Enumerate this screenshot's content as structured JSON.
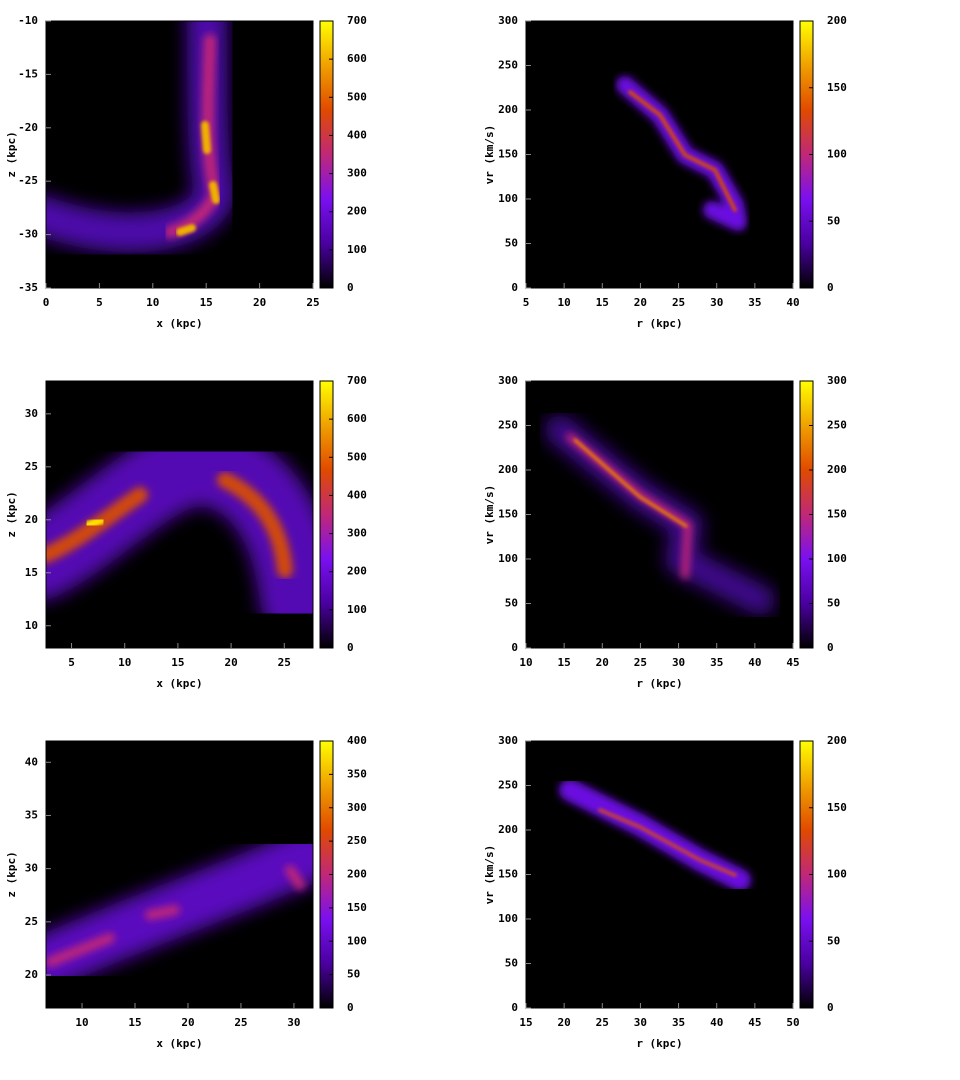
{
  "chart_data": [
    {
      "type": "heatmap",
      "xlabel": "x (kpc)",
      "ylabel": "z (kpc)",
      "xlim": [
        0,
        25
      ],
      "xticks": [
        0,
        5,
        10,
        15,
        20,
        25
      ],
      "ylim": [
        -35,
        -10
      ],
      "yticks": [
        -35,
        -30,
        -25,
        -20,
        -15,
        -10
      ],
      "cblim": [
        0,
        700
      ],
      "cbticks": [
        0,
        100,
        200,
        300,
        400,
        500,
        600,
        700
      ],
      "colormap": [
        "#000000",
        "#4a00a0",
        "#7a10f0",
        "#c02878",
        "#e04a00",
        "#f0a000",
        "#ffff00"
      ]
    },
    {
      "type": "heatmap",
      "xlabel": "r (kpc)",
      "ylabel": "vr (km/s)",
      "xlim": [
        5,
        40
      ],
      "xticks": [
        5,
        10,
        15,
        20,
        25,
        30,
        35,
        40
      ],
      "ylim": [
        0,
        300
      ],
      "yticks": [
        0,
        50,
        100,
        150,
        200,
        250,
        300
      ],
      "cblim": [
        0,
        200
      ],
      "cbticks": [
        0,
        50,
        100,
        150,
        200
      ],
      "colormap": [
        "#000000",
        "#4a00a0",
        "#7a10f0",
        "#c02878",
        "#e04a00",
        "#f0a000",
        "#ffff00"
      ]
    },
    {
      "type": "heatmap",
      "xlabel": "x (kpc)",
      "ylabel": "z (kpc)",
      "xlim": [
        2.6,
        27.7
      ],
      "xticks": [
        5,
        10,
        15,
        20,
        25
      ],
      "ylim": [
        7.9,
        33.1
      ],
      "yticks": [
        10,
        15,
        20,
        25,
        30
      ],
      "cblim": [
        0,
        700
      ],
      "cbticks": [
        0,
        100,
        200,
        300,
        400,
        500,
        600,
        700
      ],
      "colormap": [
        "#000000",
        "#4a00a0",
        "#7a10f0",
        "#c02878",
        "#e04a00",
        "#f0a000",
        "#ffff00"
      ]
    },
    {
      "type": "heatmap",
      "xlabel": "r (kpc)",
      "ylabel": "vr (km/s)",
      "xlim": [
        10,
        45
      ],
      "xticks": [
        10,
        15,
        20,
        25,
        30,
        35,
        40,
        45
      ],
      "ylim": [
        0,
        300
      ],
      "yticks": [
        0,
        50,
        100,
        150,
        200,
        250,
        300
      ],
      "cblim": [
        0,
        300
      ],
      "cbticks": [
        0,
        50,
        100,
        150,
        200,
        250,
        300
      ],
      "colormap": [
        "#000000",
        "#4a00a0",
        "#7a10f0",
        "#c02878",
        "#e04a00",
        "#f0a000",
        "#ffff00"
      ]
    },
    {
      "type": "heatmap",
      "xlabel": "x (kpc)",
      "ylabel": "z (kpc)",
      "xlim": [
        6.6,
        31.8
      ],
      "xticks": [
        10,
        15,
        20,
        25,
        30
      ],
      "ylim": [
        16.9,
        42
      ],
      "yticks": [
        20,
        25,
        30,
        35,
        40
      ],
      "cblim": [
        0,
        400
      ],
      "cbticks": [
        0,
        50,
        100,
        150,
        200,
        250,
        300,
        350,
        400
      ],
      "colormap": [
        "#000000",
        "#4a00a0",
        "#7a10f0",
        "#c02878",
        "#e04a00",
        "#f0a000",
        "#ffff00"
      ]
    },
    {
      "type": "heatmap",
      "xlabel": "r (kpc)",
      "ylabel": "vr (km/s)",
      "xlim": [
        15,
        50
      ],
      "xticks": [
        15,
        20,
        25,
        30,
        35,
        40,
        45,
        50
      ],
      "ylim": [
        0,
        300
      ],
      "yticks": [
        0,
        50,
        100,
        150,
        200,
        250,
        300
      ],
      "cblim": [
        0,
        200
      ],
      "cbticks": [
        0,
        50,
        100,
        150,
        200
      ],
      "colormap": [
        "#000000",
        "#4a00a0",
        "#7a10f0",
        "#c02878",
        "#e04a00",
        "#f0a000",
        "#ffff00"
      ]
    }
  ]
}
